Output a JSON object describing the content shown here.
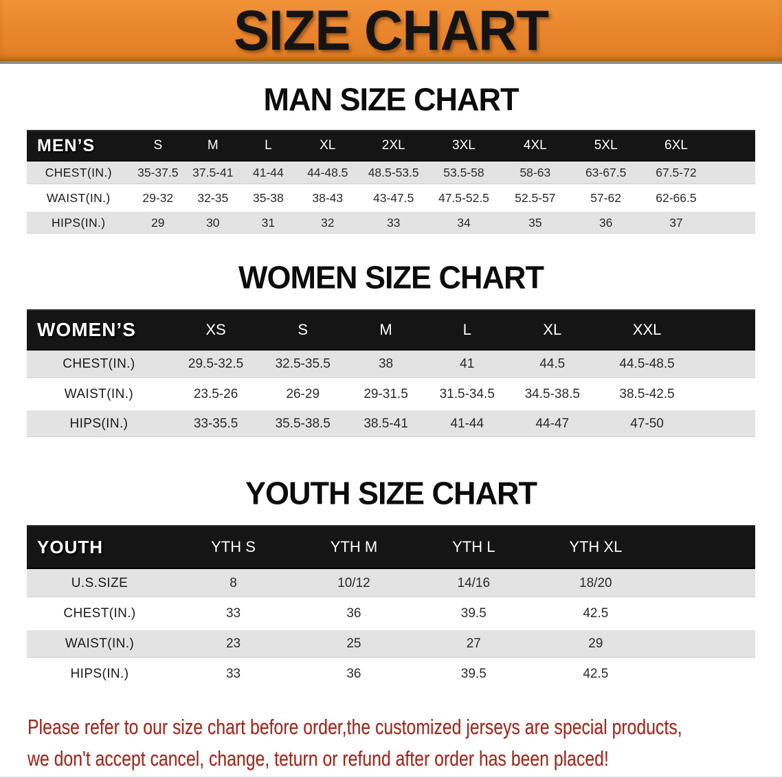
{
  "banner": {
    "title": "SIZE CHART"
  },
  "theme": {
    "banner_orange": "#E8842B",
    "header_bar_black": "#151515",
    "stripe_gray": "#E3E3E3",
    "disclaimer_red": "#9E2B1F"
  },
  "sections": [
    {
      "id": "man",
      "title": "MAN SIZE CHART",
      "corner_label": "MEN’S",
      "columns": [
        "S",
        "M",
        "L",
        "XL",
        "2XL",
        "3XL",
        "4XL",
        "5XL",
        "6XL"
      ],
      "rows": [
        {
          "label": "CHEST(IN.)",
          "values": [
            "35-37.5",
            "37.5-41",
            "41-44",
            "44-48.5",
            "48.5-53.5",
            "53.5-58",
            "58-63",
            "63-67.5",
            "67.5-72"
          ]
        },
        {
          "label": "WAIST(IN.)",
          "values": [
            "29-32",
            "32-35",
            "35-38",
            "38-43",
            "43-47.5",
            "47.5-52.5",
            "52.5-57",
            "57-62",
            "62-66.5"
          ]
        },
        {
          "label": "HIPS(IN.)",
          "values": [
            "29",
            "30",
            "31",
            "32",
            "33",
            "34",
            "35",
            "36",
            "37"
          ]
        }
      ]
    },
    {
      "id": "women",
      "title": "WOMEN SIZE CHART",
      "corner_label": "WOMEN’S",
      "columns": [
        "XS",
        "S",
        "M",
        "L",
        "XL",
        "XXL"
      ],
      "rows": [
        {
          "label": "CHEST(IN.)",
          "values": [
            "29.5-32.5",
            "32.5-35.5",
            "38",
            "41",
            "44.5",
            "44.5-48.5"
          ]
        },
        {
          "label": "WAIST(IN.)",
          "values": [
            "23.5-26",
            "26-29",
            "29-31.5",
            "31.5-34.5",
            "34.5-38.5",
            "38.5-42.5"
          ]
        },
        {
          "label": "HIPS(IN.)",
          "values": [
            "33-35.5",
            "35.5-38.5",
            "38.5-41",
            "41-44",
            "44-47",
            "47-50"
          ]
        }
      ]
    },
    {
      "id": "youth",
      "title": "YOUTH SIZE CHART",
      "corner_label": "YOUTH",
      "columns": [
        "YTH S",
        "YTH M",
        "YTH L",
        "YTH XL"
      ],
      "rows": [
        {
          "label": "U.S.SIZE",
          "values": [
            "8",
            "10/12",
            "14/16",
            "18/20"
          ]
        },
        {
          "label": "CHEST(IN.)",
          "values": [
            "33",
            "36",
            "39.5",
            "42.5"
          ]
        },
        {
          "label": "WAIST(IN.)",
          "values": [
            "23",
            "25",
            "27",
            "29"
          ]
        },
        {
          "label": "HIPS(IN.)",
          "values": [
            "33",
            "36",
            "39.5",
            "42.5"
          ]
        }
      ]
    }
  ],
  "disclaimer": {
    "lines": [
      "Please refer to our size chart before order,the customized jerseys are special products,",
      "we don't accept cancel, change, teturn or refund after order has been placed!"
    ]
  }
}
